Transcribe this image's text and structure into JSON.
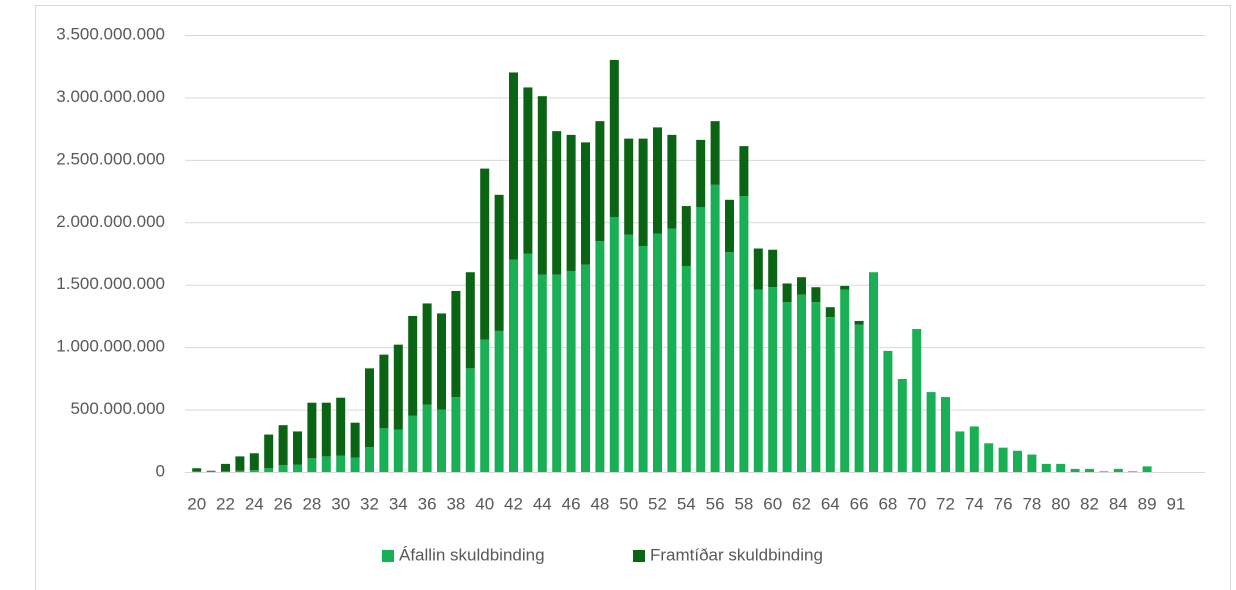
{
  "chart_data": {
    "type": "bar",
    "stacked": true,
    "grid": true,
    "legend": "bottom",
    "categories": [
      "20",
      null,
      "22",
      null,
      "24",
      null,
      "26",
      null,
      "28",
      null,
      "30",
      null,
      "32",
      null,
      "34",
      null,
      "36",
      null,
      "38",
      null,
      "40",
      null,
      "42",
      null,
      "44",
      null,
      "46",
      null,
      "48",
      null,
      "50",
      null,
      "52",
      null,
      "54",
      null,
      "56",
      null,
      "58",
      null,
      "60",
      null,
      "62",
      null,
      "64",
      null,
      "66",
      null,
      "68",
      null,
      "70",
      null,
      "72",
      null,
      "74",
      null,
      "76",
      null,
      "78",
      null,
      "80",
      null,
      "82",
      null,
      "84",
      null,
      "89",
      null,
      "91"
    ],
    "series": [
      {
        "name": "Áfallin skuldbinding",
        "color": "#19b055",
        "values": [
          5000000,
          5000000,
          5000000,
          10000000,
          15000000,
          30000000,
          55000000,
          60000000,
          110000000,
          125000000,
          130000000,
          115000000,
          200000000,
          350000000,
          340000000,
          450000000,
          540000000,
          500000000,
          600000000,
          830000000,
          1060000000,
          1130000000,
          1700000000,
          1750000000,
          1580000000,
          1580000000,
          1610000000,
          1660000000,
          1850000000,
          2040000000,
          1900000000,
          1810000000,
          1910000000,
          1950000000,
          1650000000,
          2120000000,
          2300000000,
          1760000000,
          2210000000,
          1460000000,
          1480000000,
          1360000000,
          1420000000,
          1360000000,
          1240000000,
          1460000000,
          1180000000,
          1600000000,
          970000000,
          745000000,
          1145000000,
          640000000,
          600000000,
          325000000,
          365000000,
          230000000,
          195000000,
          170000000,
          140000000,
          65000000,
          65000000,
          25000000,
          25000000,
          5000000,
          25000000,
          5000000,
          45000000,
          0,
          0
        ]
      },
      {
        "name": "Framtíðar skuldbinding",
        "color": "#0b6414",
        "values": [
          25000000,
          5000000,
          60000000,
          115000000,
          135000000,
          270000000,
          320000000,
          265000000,
          445000000,
          430000000,
          465000000,
          280000000,
          630000000,
          590000000,
          680000000,
          800000000,
          810000000,
          770000000,
          850000000,
          770000000,
          1370000000,
          1090000000,
          1500000000,
          1330000000,
          1430000000,
          1150000000,
          1090000000,
          980000000,
          960000000,
          1260000000,
          770000000,
          860000000,
          850000000,
          750000000,
          480000000,
          540000000,
          510000000,
          420000000,
          400000000,
          330000000,
          300000000,
          150000000,
          140000000,
          120000000,
          80000000,
          30000000,
          30000000,
          0,
          0,
          0,
          0,
          0,
          0,
          0,
          0,
          0,
          0,
          0,
          0,
          0,
          0,
          0,
          0,
          0,
          0,
          0,
          0,
          0,
          0
        ]
      }
    ],
    "ylim": [
      0,
      3500000000
    ],
    "yticks": [
      0,
      {
        "value": 500000000,
        "label": "500.000.000"
      },
      {
        "value": 1000000000,
        "label": "1.000.000.000"
      },
      {
        "value": 1500000000,
        "label": "1.500.000.000"
      },
      {
        "value": 2000000000,
        "label": "2.000.000.000"
      },
      {
        "value": 2500000000,
        "label": "2.500.000.000"
      },
      {
        "value": 3000000000,
        "label": "3.000.000.000"
      },
      {
        "value": 3500000000,
        "label": "3.500.000.000"
      }
    ]
  }
}
